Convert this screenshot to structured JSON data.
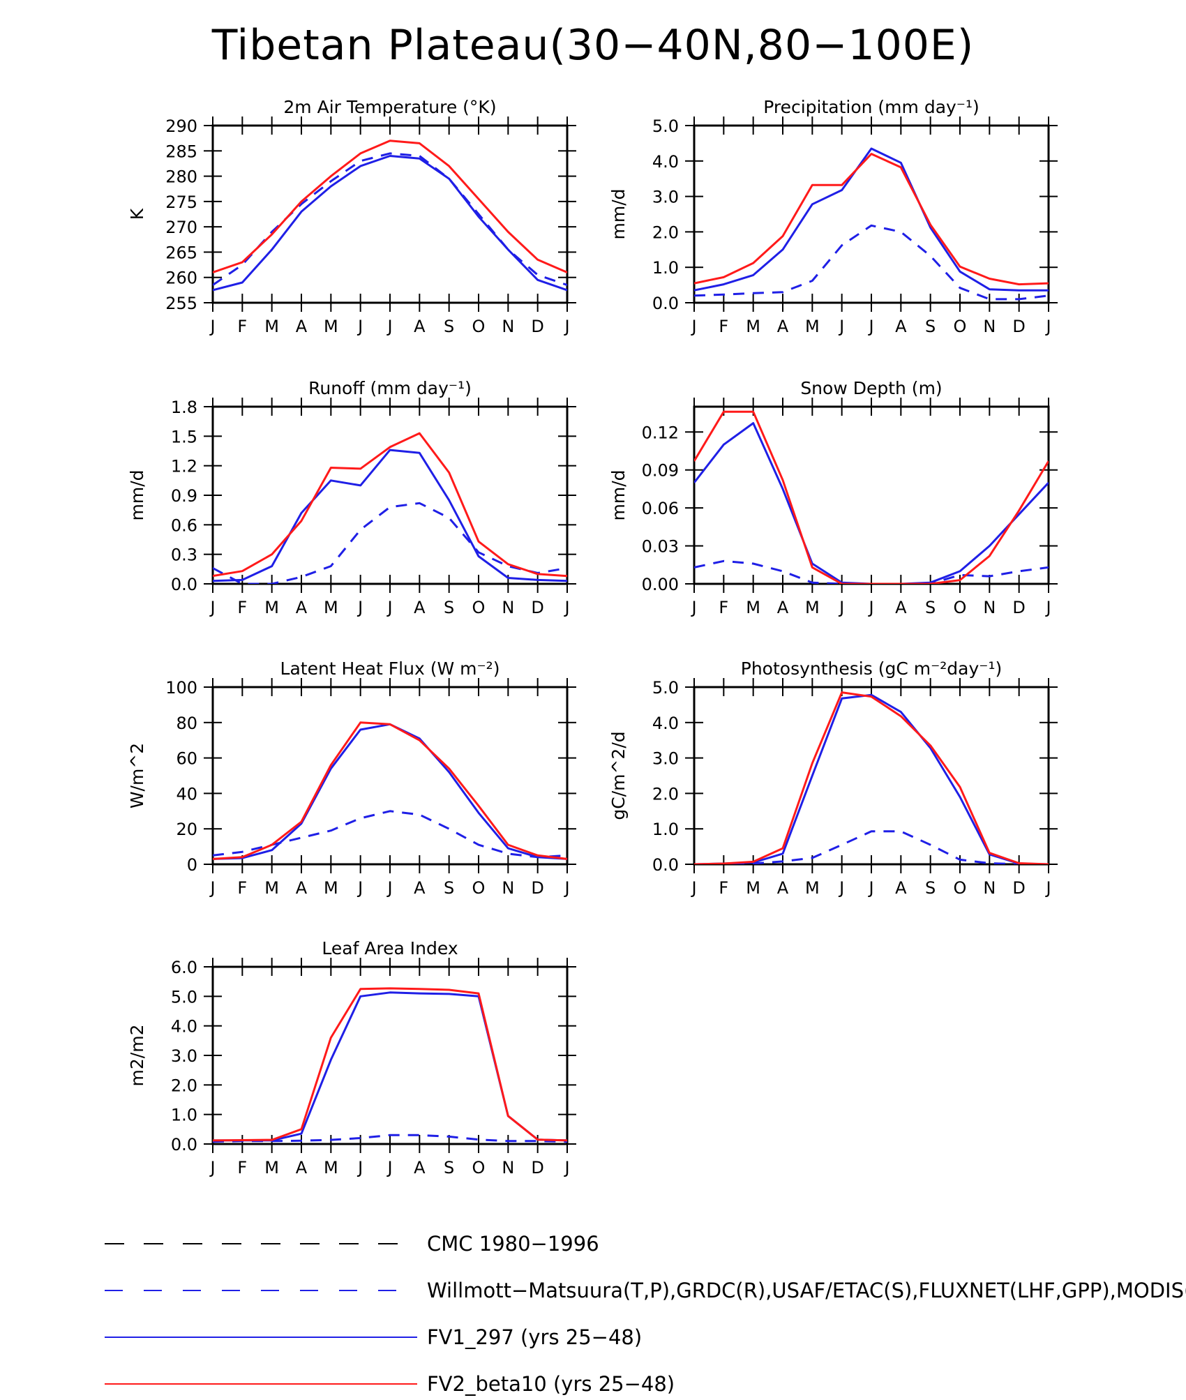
{
  "page_title": "Tibetan Plateau(30−40N,80−100E)",
  "months": [
    "J",
    "F",
    "M",
    "A",
    "M",
    "J",
    "J",
    "A",
    "S",
    "O",
    "N",
    "D",
    "J"
  ],
  "legend": [
    {
      "label": "CMC 1980−1996",
      "color": "#000000",
      "dash": "long"
    },
    {
      "label": "Willmott−Matsuura(T,P),GRDC(R),USAF/ETAC(S),FLUXNET(LHF,GPP),MODIS(L",
      "color": "#1f1fe6",
      "dash": "medium"
    },
    {
      "label": "FV1_297 (yrs 25−48)",
      "color": "#1f1fe6",
      "dash": "solid"
    },
    {
      "label": "FV2_beta10 (yrs 25−48)",
      "color": "#ff1a1a",
      "dash": "solid"
    }
  ],
  "chart_data": [
    {
      "type": "line",
      "title": "2m Air Temperature (°K)",
      "ylabel": "K",
      "ylim": [
        255,
        290
      ],
      "yticks": [
        "255",
        "260",
        "265",
        "270",
        "275",
        "280",
        "285",
        "290"
      ],
      "categories": [
        "J",
        "F",
        "M",
        "A",
        "M",
        "J",
        "J",
        "A",
        "S",
        "O",
        "N",
        "D",
        "J"
      ],
      "series": [
        {
          "style": "obs",
          "values": [
            258.5,
            262.5,
            269,
            274.5,
            279,
            283,
            284.5,
            284,
            279.5,
            272.5,
            265.5,
            260.5,
            258.5
          ]
        },
        {
          "style": "fv1",
          "values": [
            257.5,
            259,
            265.5,
            273,
            278,
            282,
            284,
            283.5,
            279.5,
            272,
            265.5,
            259.5,
            257.5
          ]
        },
        {
          "style": "fv2",
          "values": [
            261,
            263,
            268.5,
            275,
            280,
            284.5,
            287,
            286.5,
            282,
            275.5,
            269,
            263.5,
            261
          ]
        }
      ]
    },
    {
      "type": "line",
      "title": "Precipitation (mm day⁻¹)",
      "ylabel": "mm/d",
      "ylim": [
        0,
        5
      ],
      "yticks": [
        "0.0",
        "1.0",
        "2.0",
        "3.0",
        "4.0",
        "5.0"
      ],
      "categories": [
        "J",
        "F",
        "M",
        "A",
        "M",
        "J",
        "J",
        "A",
        "S",
        "O",
        "N",
        "D",
        "J"
      ],
      "series": [
        {
          "style": "obs",
          "values": [
            0.2,
            0.23,
            0.27,
            0.3,
            0.62,
            1.62,
            2.18,
            2.0,
            1.32,
            0.42,
            0.1,
            0.1,
            0.2
          ]
        },
        {
          "style": "fv1",
          "values": [
            0.35,
            0.52,
            0.78,
            1.5,
            2.78,
            3.18,
            4.35,
            3.95,
            2.12,
            0.88,
            0.38,
            0.35,
            0.35
          ]
        },
        {
          "style": "fv2",
          "values": [
            0.55,
            0.72,
            1.12,
            1.88,
            3.32,
            3.32,
            4.2,
            3.82,
            2.2,
            1.02,
            0.68,
            0.52,
            0.55
          ]
        }
      ]
    },
    {
      "type": "line",
      "title": "Runoff (mm day⁻¹)",
      "ylabel": "mm/d",
      "ylim": [
        0,
        1.8
      ],
      "yticks": [
        "0.0",
        "0.3",
        "0.6",
        "0.9",
        "1.2",
        "1.5",
        "1.8"
      ],
      "categories": [
        "J",
        "F",
        "M",
        "A",
        "M",
        "J",
        "J",
        "A",
        "S",
        "O",
        "N",
        "D",
        "J"
      ],
      "series": [
        {
          "style": "obs",
          "values": [
            0.16,
            0.0,
            0.0,
            0.07,
            0.18,
            0.55,
            0.78,
            0.82,
            0.67,
            0.32,
            0.18,
            0.11,
            0.16
          ]
        },
        {
          "style": "fv1",
          "values": [
            0.03,
            0.04,
            0.18,
            0.72,
            1.05,
            1.0,
            1.36,
            1.33,
            0.85,
            0.28,
            0.06,
            0.04,
            0.03
          ]
        },
        {
          "style": "fv2",
          "values": [
            0.08,
            0.13,
            0.3,
            0.64,
            1.18,
            1.17,
            1.39,
            1.53,
            1.13,
            0.43,
            0.2,
            0.1,
            0.08
          ]
        }
      ]
    },
    {
      "type": "line",
      "title": "Snow Depth (m)",
      "ylabel": "mm/d",
      "ylim": [
        0,
        0.14
      ],
      "yticks": [
        "0.00",
        "0.03",
        "0.06",
        "0.09",
        "0.12"
      ],
      "categories": [
        "J",
        "F",
        "M",
        "A",
        "M",
        "J",
        "J",
        "A",
        "S",
        "O",
        "N",
        "D",
        "J"
      ],
      "series": [
        {
          "style": "cmc",
          "values": [
            0,
            0,
            0,
            0,
            0,
            0,
            0,
            0,
            0,
            0,
            0,
            0,
            0
          ]
        },
        {
          "style": "obs",
          "values": [
            0.013,
            0.018,
            0.016,
            0.01,
            0.001,
            0.0,
            0.0,
            0.0,
            0.0,
            0.007,
            0.006,
            0.01,
            0.013
          ]
        },
        {
          "style": "fv1",
          "values": [
            0.08,
            0.11,
            0.127,
            0.075,
            0.016,
            0.001,
            0.0,
            0.0,
            0.001,
            0.01,
            0.03,
            0.055,
            0.08
          ]
        },
        {
          "style": "fv2",
          "values": [
            0.097,
            0.136,
            0.136,
            0.082,
            0.013,
            0.0,
            0.0,
            0.0,
            0.0,
            0.003,
            0.022,
            0.058,
            0.097
          ]
        }
      ]
    },
    {
      "type": "line",
      "title": "Latent Heat Flux (W m⁻²)",
      "ylabel": "W/m^2",
      "ylim": [
        0,
        100
      ],
      "yticks": [
        "0",
        "20",
        "40",
        "60",
        "80",
        "100"
      ],
      "categories": [
        "J",
        "F",
        "M",
        "A",
        "M",
        "J",
        "J",
        "A",
        "S",
        "O",
        "N",
        "D",
        "J"
      ],
      "series": [
        {
          "style": "obs",
          "values": [
            5,
            7,
            11,
            15,
            19,
            26,
            30,
            28,
            20,
            11,
            6,
            4,
            5
          ]
        },
        {
          "style": "fv1",
          "values": [
            3,
            3.5,
            8,
            23,
            54,
            76,
            79,
            71,
            52,
            29,
            9,
            4,
            3
          ]
        },
        {
          "style": "fv2",
          "values": [
            3,
            4,
            11,
            24,
            56,
            80,
            79,
            70,
            54,
            33,
            11,
            5,
            3
          ]
        }
      ]
    },
    {
      "type": "line",
      "title": "Photosynthesis (gC m⁻²day⁻¹)",
      "ylabel": "gC/m^2/d",
      "ylim": [
        0,
        5
      ],
      "yticks": [
        "0.0",
        "1.0",
        "2.0",
        "3.0",
        "4.0",
        "5.0"
      ],
      "categories": [
        "J",
        "F",
        "M",
        "A",
        "M",
        "J",
        "J",
        "A",
        "S",
        "O",
        "N",
        "D",
        "J"
      ],
      "series": [
        {
          "style": "obs",
          "values": [
            0.0,
            0.0,
            0.02,
            0.08,
            0.18,
            0.55,
            0.93,
            0.93,
            0.55,
            0.13,
            0.03,
            0.0,
            0.0
          ]
        },
        {
          "style": "fv1",
          "values": [
            0.0,
            0.02,
            0.05,
            0.3,
            2.5,
            4.68,
            4.78,
            4.3,
            3.28,
            1.9,
            0.28,
            0.02,
            0.0
          ]
        },
        {
          "style": "fv2",
          "values": [
            0.0,
            0.02,
            0.07,
            0.45,
            2.85,
            4.85,
            4.73,
            4.18,
            3.35,
            2.18,
            0.32,
            0.03,
            0.0
          ]
        }
      ]
    },
    {
      "type": "line",
      "title": "Leaf Area Index",
      "ylabel": "m2/m2",
      "ylim": [
        0,
        6
      ],
      "yticks": [
        "0.0",
        "1.0",
        "2.0",
        "3.0",
        "4.0",
        "5.0",
        "6.0"
      ],
      "categories": [
        "J",
        "F",
        "M",
        "A",
        "M",
        "J",
        "J",
        "A",
        "S",
        "O",
        "N",
        "D",
        "J"
      ],
      "series": [
        {
          "style": "obs",
          "values": [
            0.08,
            0.1,
            0.1,
            0.11,
            0.14,
            0.2,
            0.3,
            0.3,
            0.25,
            0.15,
            0.1,
            0.1,
            0.08
          ]
        },
        {
          "style": "fv1",
          "values": [
            0.12,
            0.12,
            0.12,
            0.35,
            2.85,
            5.0,
            5.13,
            5.1,
            5.08,
            5.0,
            0.95,
            0.15,
            0.12
          ]
        },
        {
          "style": "fv2",
          "values": [
            0.12,
            0.13,
            0.14,
            0.5,
            3.6,
            5.25,
            5.27,
            5.25,
            5.22,
            5.1,
            0.95,
            0.15,
            0.12
          ]
        }
      ]
    }
  ]
}
